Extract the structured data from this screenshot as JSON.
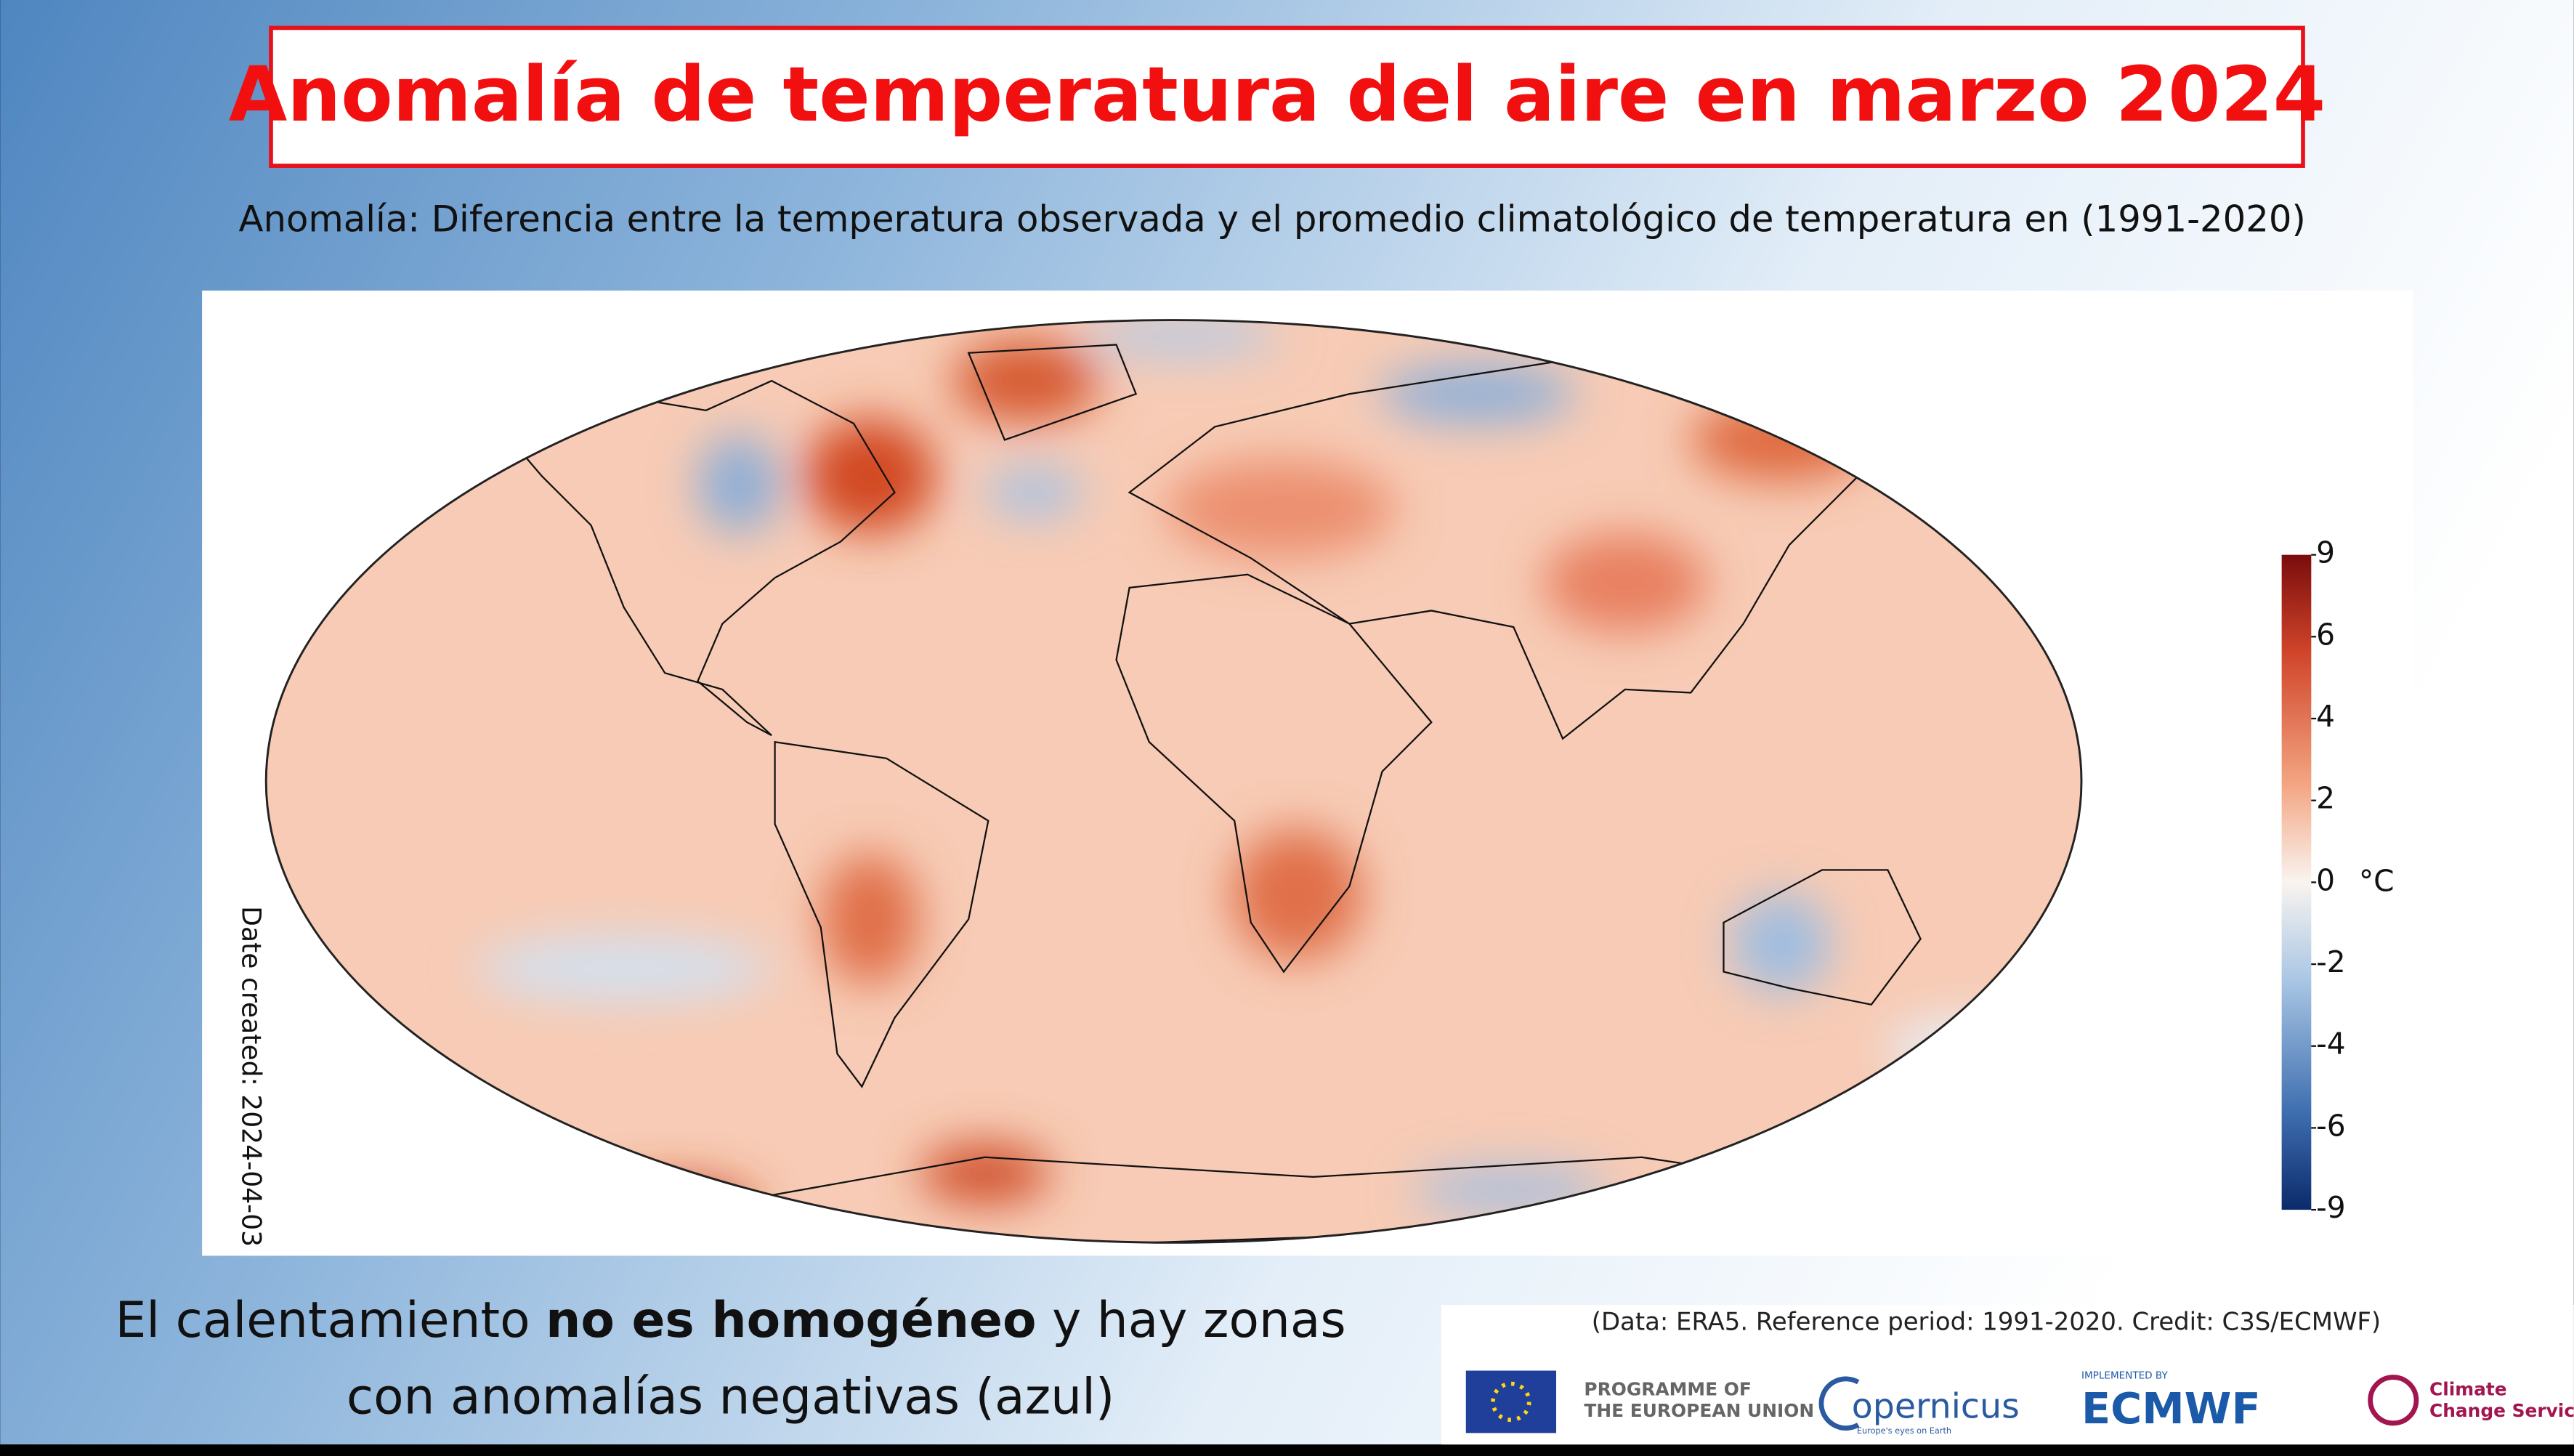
{
  "header": {
    "title": "Anomalía de temperatura del aire en marzo 2024",
    "subtitle": "Anomalía: Diferencia entre la temperatura observada y el promedio climatológico de temperatura en (1991-2020)"
  },
  "map": {
    "date_created": "Date created: 2024-04-03",
    "colorbar": {
      "ticks": [
        9,
        6,
        4,
        2,
        0,
        -2,
        -4,
        -6,
        -9
      ],
      "unit": "°C"
    }
  },
  "caption": {
    "parts": [
      "El calentamiento ",
      "no es homogéneo",
      " y hay zonas",
      "con anomalías negativas (azul)"
    ]
  },
  "footer": {
    "credit": "(Data: ERA5.  Reference period: 1991-2020.  Credit: C3S/ECMWF)",
    "logos": {
      "eu": [
        "PROGRAMME OF",
        "THE EUROPEAN UNION"
      ],
      "copernicus": "opernicus",
      "copernicus_tagline": "Europe's eyes on Earth",
      "ecmwf_label": "IMPLEMENTED BY",
      "ecmwf": "ECMWF",
      "c3s": [
        "Climate",
        "Change Service"
      ]
    }
  }
}
